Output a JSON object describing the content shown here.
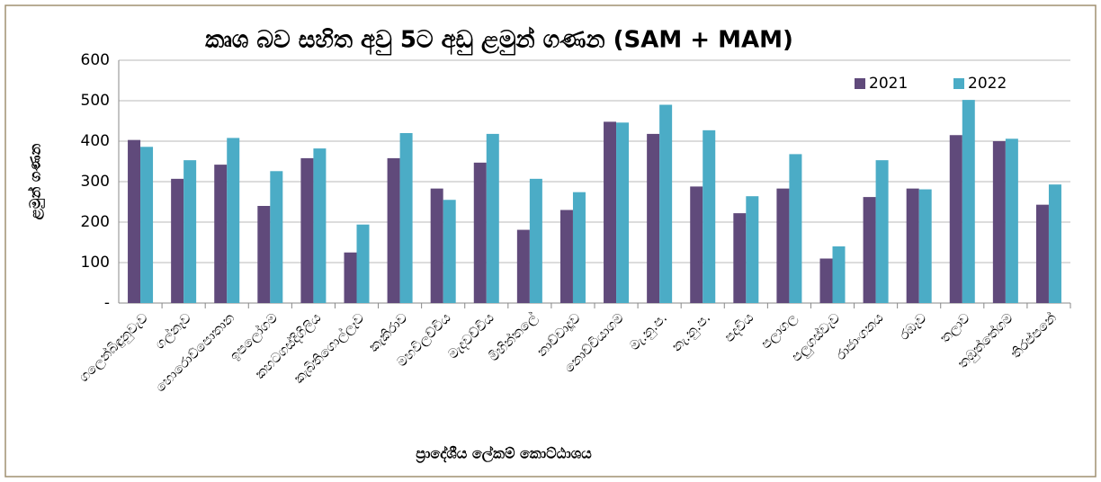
{
  "chart_data": {
    "type": "bar",
    "title": "කෘශ බව සහිත අවු 5ට අඩු ළමුන් ගණන (SAM + MAM)",
    "x_label": "ප්‍රාදේශීය ලේකම් කොට්ඨාශය",
    "y_label": "ළමුන් ගණන",
    "categories": [
      "ගලෙන්බිඳුනුවැව",
      "ගල්නෑව",
      "හොරොව්පොතාන",
      "ඉපලෝගම",
      "කහටගස්දිගිලිය",
      "කැබිතිගොල්ලෑව",
      "කැකිරාව",
      "මහවිලච්චිය",
      "මැදවච්චිය",
      "මිහින්තලේ",
      "නාච්චාදූව",
      "නොච්චියාගම",
      "මැ.නු.ප.",
      "නැ.නු.ප.",
      "පදවිය",
      "පලාගල",
      "පලුගස්වැව",
      "රාජාංගනය",
      "රඹෑව",
      "තලාව",
      "තඹුත්තේගම",
      "තිරප්පනේ"
    ],
    "series": [
      {
        "name": "2021",
        "color": "#604a7b",
        "values": [
          403,
          307,
          342,
          240,
          358,
          125,
          358,
          283,
          347,
          181,
          230,
          448,
          418,
          288,
          222,
          283,
          110,
          262,
          283,
          415,
          400,
          243
        ]
      },
      {
        "name": "2022",
        "color": "#4bacc6",
        "values": [
          386,
          353,
          408,
          326,
          382,
          194,
          420,
          255,
          418,
          307,
          274,
          446,
          490,
          427,
          264,
          368,
          140,
          353,
          281,
          502,
          406,
          293
        ]
      }
    ],
    "ylim": [
      0,
      600
    ],
    "yticks": [
      {
        "value": 0,
        "label": "-"
      },
      100,
      200,
      300,
      400,
      500,
      600
    ],
    "grid": true,
    "legend": "top-right"
  }
}
